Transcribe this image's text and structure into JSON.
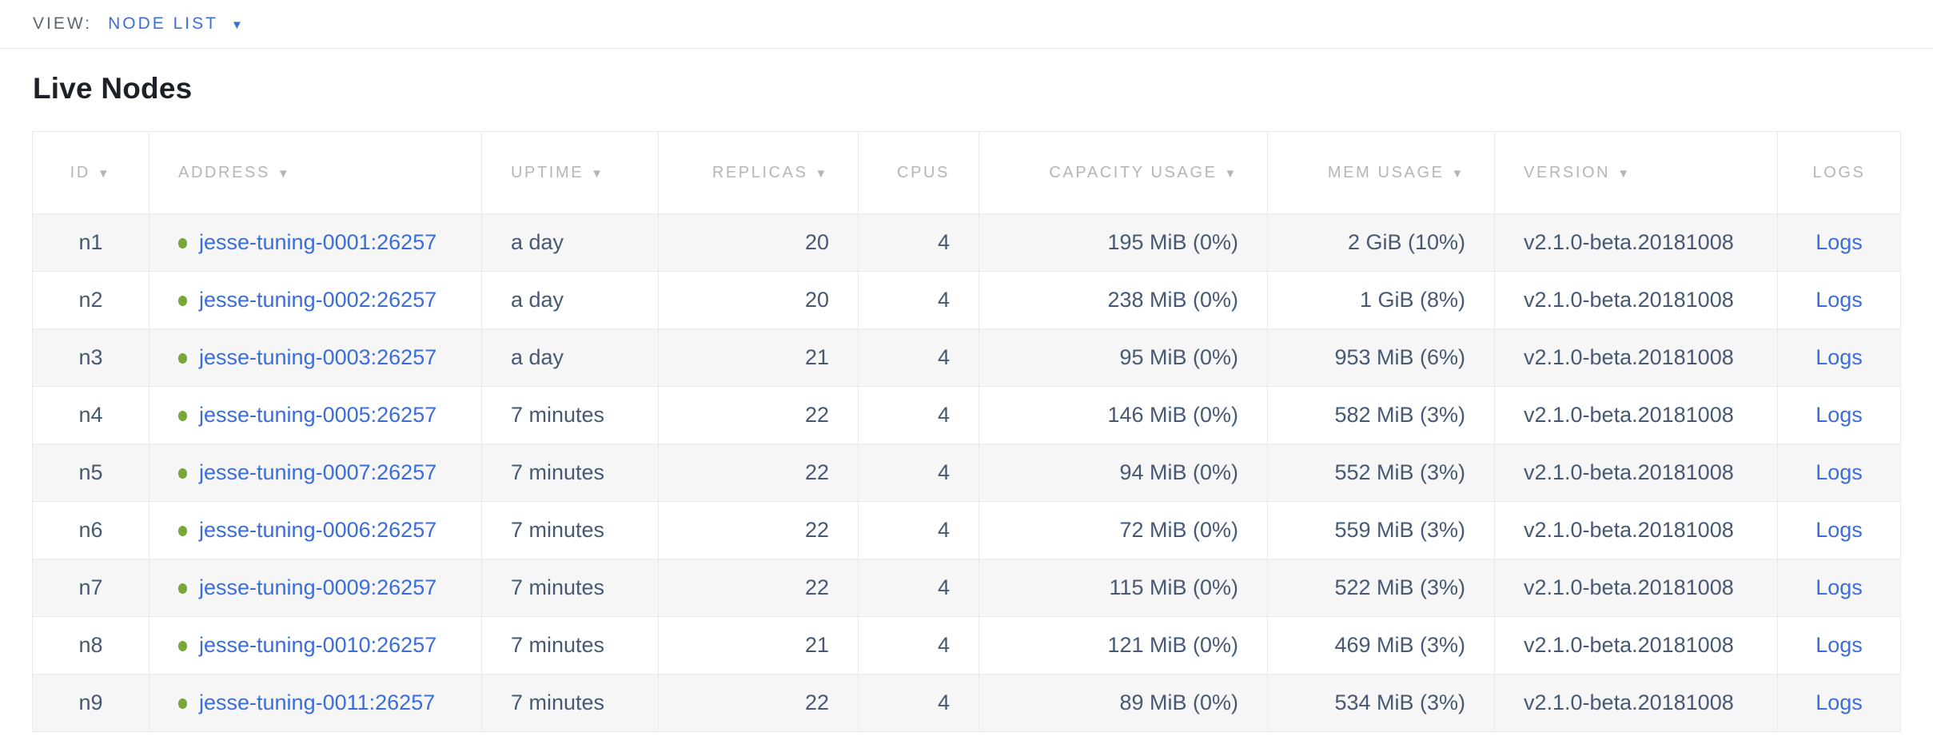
{
  "view_bar": {
    "label": "VIEW:",
    "selected": "NODE LIST",
    "caret_icon": "▼"
  },
  "page": {
    "title": "Live Nodes"
  },
  "table": {
    "sort_icon": "▼",
    "columns": [
      {
        "key": "id",
        "label": "ID",
        "sortable": true,
        "align": "center"
      },
      {
        "key": "address",
        "label": "ADDRESS",
        "sortable": true,
        "align": "left"
      },
      {
        "key": "uptime",
        "label": "UPTIME",
        "sortable": true,
        "align": "left"
      },
      {
        "key": "replicas",
        "label": "REPLICAS",
        "sortable": true,
        "align": "right"
      },
      {
        "key": "cpus",
        "label": "CPUS",
        "sortable": false,
        "align": "right"
      },
      {
        "key": "capacity",
        "label": "CAPACITY USAGE",
        "sortable": true,
        "align": "right"
      },
      {
        "key": "mem",
        "label": "MEM USAGE",
        "sortable": true,
        "align": "right"
      },
      {
        "key": "version",
        "label": "VERSION",
        "sortable": true,
        "align": "left"
      },
      {
        "key": "logs",
        "label": "LOGS",
        "sortable": false,
        "align": "center"
      }
    ],
    "rows": [
      {
        "id": "n1",
        "address": "jesse-tuning-0001:26257",
        "uptime": "a day",
        "replicas": "20",
        "cpus": "4",
        "capacity": "195 MiB (0%)",
        "mem": "2 GiB (10%)",
        "version": "v2.1.0-beta.20181008",
        "logs": "Logs"
      },
      {
        "id": "n2",
        "address": "jesse-tuning-0002:26257",
        "uptime": "a day",
        "replicas": "20",
        "cpus": "4",
        "capacity": "238 MiB (0%)",
        "mem": "1 GiB (8%)",
        "version": "v2.1.0-beta.20181008",
        "logs": "Logs"
      },
      {
        "id": "n3",
        "address": "jesse-tuning-0003:26257",
        "uptime": "a day",
        "replicas": "21",
        "cpus": "4",
        "capacity": "95 MiB (0%)",
        "mem": "953 MiB (6%)",
        "version": "v2.1.0-beta.20181008",
        "logs": "Logs"
      },
      {
        "id": "n4",
        "address": "jesse-tuning-0005:26257",
        "uptime": "7 minutes",
        "replicas": "22",
        "cpus": "4",
        "capacity": "146 MiB (0%)",
        "mem": "582 MiB (3%)",
        "version": "v2.1.0-beta.20181008",
        "logs": "Logs"
      },
      {
        "id": "n5",
        "address": "jesse-tuning-0007:26257",
        "uptime": "7 minutes",
        "replicas": "22",
        "cpus": "4",
        "capacity": "94 MiB (0%)",
        "mem": "552 MiB (3%)",
        "version": "v2.1.0-beta.20181008",
        "logs": "Logs"
      },
      {
        "id": "n6",
        "address": "jesse-tuning-0006:26257",
        "uptime": "7 minutes",
        "replicas": "22",
        "cpus": "4",
        "capacity": "72 MiB (0%)",
        "mem": "559 MiB (3%)",
        "version": "v2.1.0-beta.20181008",
        "logs": "Logs"
      },
      {
        "id": "n7",
        "address": "jesse-tuning-0009:26257",
        "uptime": "7 minutes",
        "replicas": "22",
        "cpus": "4",
        "capacity": "115 MiB (0%)",
        "mem": "522 MiB (3%)",
        "version": "v2.1.0-beta.20181008",
        "logs": "Logs"
      },
      {
        "id": "n8",
        "address": "jesse-tuning-0010:26257",
        "uptime": "7 minutes",
        "replicas": "21",
        "cpus": "4",
        "capacity": "121 MiB (0%)",
        "mem": "469 MiB (3%)",
        "version": "v2.1.0-beta.20181008",
        "logs": "Logs"
      },
      {
        "id": "n9",
        "address": "jesse-tuning-0011:26257",
        "uptime": "7 minutes",
        "replicas": "22",
        "cpus": "4",
        "capacity": "89 MiB (0%)",
        "mem": "534 MiB (3%)",
        "version": "v2.1.0-beta.20181008",
        "logs": "Logs"
      }
    ]
  },
  "colors": {
    "link": "#3b6dd8",
    "live_dot": "#77a63a",
    "header_text": "#b2b6bb",
    "cell_text": "#475872"
  }
}
